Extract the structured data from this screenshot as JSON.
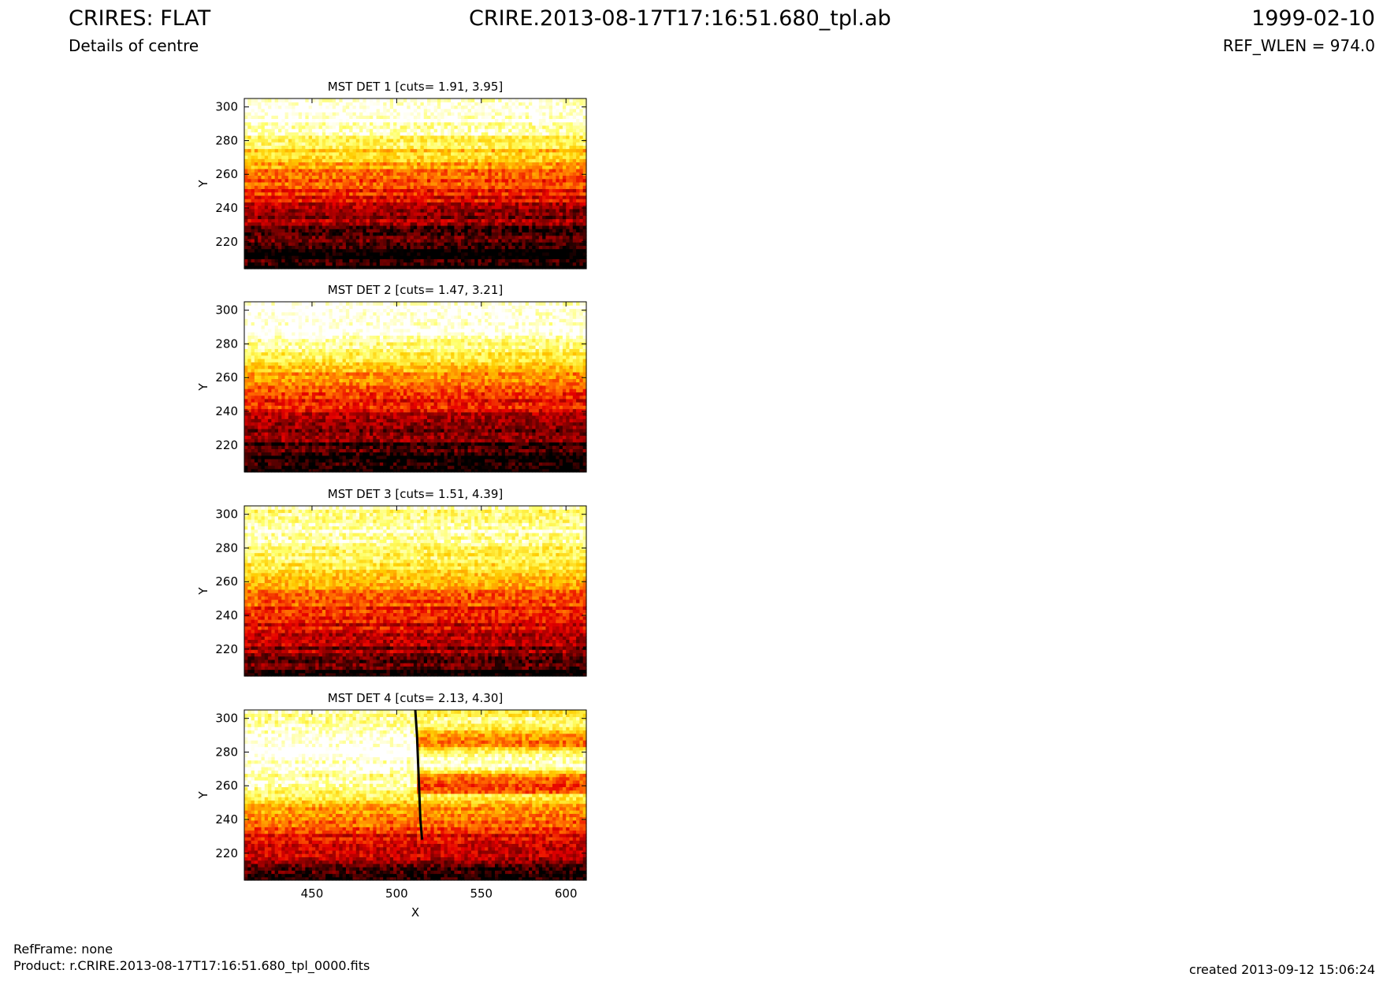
{
  "header": {
    "title_left": "CRIRES: FLAT",
    "title_center": "CRIRE.2013-08-17T17:16:51.680_tpl.ab",
    "title_right": "1999-02-10",
    "subtitle_left": "Details of centre",
    "subtitle_right": "REF_WLEN = 974.0"
  },
  "footer": {
    "refframe": "RefFrame: none",
    "product": "Product: r.CRIRE.2013-08-17T17:16:51.680_tpl_0000.fits",
    "created": "created 2013-09-12 15:06:24"
  },
  "colormap": {
    "name": "hot",
    "stops": [
      "#000000",
      "#7a0000",
      "#e60000",
      "#ff6600",
      "#ffcc00",
      "#ffff66",
      "#ffffff"
    ]
  },
  "chart_data": [
    {
      "type": "heatmap",
      "title": "MST DET 1 [cuts= 1.91, 3.95]",
      "ylabel": "Y",
      "xlabel": "",
      "xlim": [
        410,
        612
      ],
      "ylim": [
        204,
        305
      ],
      "yticks": [
        220,
        240,
        260,
        280,
        300
      ],
      "xticks": [],
      "intensity_profile": [
        [
          204,
          0.02
        ],
        [
          215,
          0.06
        ],
        [
          228,
          0.15
        ],
        [
          240,
          0.3
        ],
        [
          252,
          0.42
        ],
        [
          262,
          0.55
        ],
        [
          270,
          0.66
        ],
        [
          278,
          0.78
        ],
        [
          284,
          0.92
        ],
        [
          292,
          1.0
        ],
        [
          305,
          1.0
        ]
      ],
      "right_drop": 0.0,
      "feature_line": false
    },
    {
      "type": "heatmap",
      "title": "MST DET 2 [cuts= 1.47, 3.21]",
      "ylabel": "Y",
      "xlabel": "",
      "xlim": [
        410,
        612
      ],
      "ylim": [
        204,
        305
      ],
      "yticks": [
        220,
        240,
        260,
        280,
        300
      ],
      "xticks": [],
      "intensity_profile": [
        [
          204,
          0.02
        ],
        [
          215,
          0.08
        ],
        [
          228,
          0.2
        ],
        [
          240,
          0.35
        ],
        [
          250,
          0.45
        ],
        [
          260,
          0.58
        ],
        [
          268,
          0.7
        ],
        [
          276,
          0.82
        ],
        [
          284,
          0.95
        ],
        [
          292,
          1.0
        ],
        [
          305,
          1.0
        ]
      ],
      "right_drop": 0.0,
      "feature_line": false
    },
    {
      "type": "heatmap",
      "title": "MST DET 3 [cuts= 1.51, 4.39]",
      "ylabel": "Y",
      "xlabel": "",
      "xlim": [
        410,
        612
      ],
      "ylim": [
        204,
        305
      ],
      "yticks": [
        220,
        240,
        260,
        280,
        300
      ],
      "xticks": [],
      "intensity_profile": [
        [
          204,
          0.05
        ],
        [
          215,
          0.18
        ],
        [
          228,
          0.3
        ],
        [
          240,
          0.4
        ],
        [
          250,
          0.5
        ],
        [
          258,
          0.62
        ],
        [
          266,
          0.76
        ],
        [
          274,
          0.84
        ],
        [
          284,
          0.9
        ],
        [
          292,
          0.98
        ],
        [
          300,
          0.92
        ],
        [
          305,
          0.9
        ]
      ],
      "right_drop": 0.0,
      "feature_line": false
    },
    {
      "type": "heatmap",
      "title": "MST DET 4 [cuts= 2.13, 4.30]",
      "ylabel": "Y",
      "xlabel": "X",
      "xlim": [
        410,
        612
      ],
      "ylim": [
        204,
        305
      ],
      "yticks": [
        220,
        240,
        260,
        280,
        300
      ],
      "xticks": [
        450,
        500,
        550,
        600
      ],
      "intensity_profile": [
        [
          204,
          0.08
        ],
        [
          215,
          0.2
        ],
        [
          228,
          0.35
        ],
        [
          240,
          0.55
        ],
        [
          250,
          0.7
        ],
        [
          258,
          0.85
        ],
        [
          266,
          0.95
        ],
        [
          276,
          1.0
        ],
        [
          290,
          1.0
        ],
        [
          300,
          0.95
        ],
        [
          305,
          0.9
        ]
      ],
      "right_drop": 0.45,
      "feature_line": true,
      "feature_x": 512
    }
  ]
}
